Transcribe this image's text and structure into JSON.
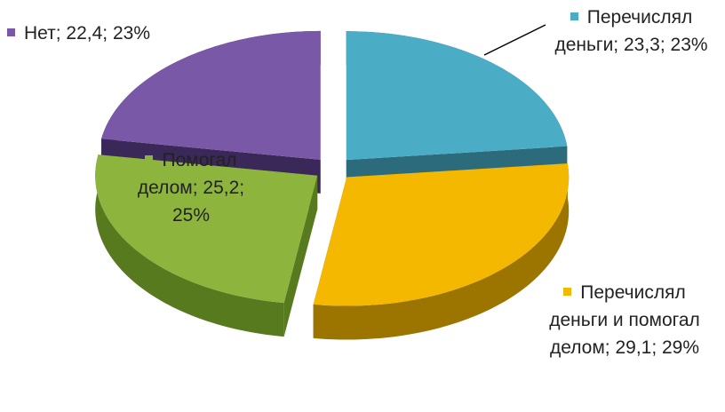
{
  "chart_data": {
    "type": "pie3d",
    "values": [
      23.3,
      29.1,
      25.2,
      22.4
    ],
    "value_labels": [
      "Перечислял деньги; 23,3; 23%",
      "Перечислял деньги и помогал делом; 29,1; 29%",
      "Помогал делом; 25,2; 25%",
      "Нет; 22,4; 23%"
    ],
    "colors": [
      "#4bacc6",
      "#f5b800",
      "#8db43c",
      "#7a58a8"
    ],
    "side_colors": [
      "#2c6b7c",
      "#9c7400",
      "#587a1f",
      "#3a2858"
    ]
  }
}
